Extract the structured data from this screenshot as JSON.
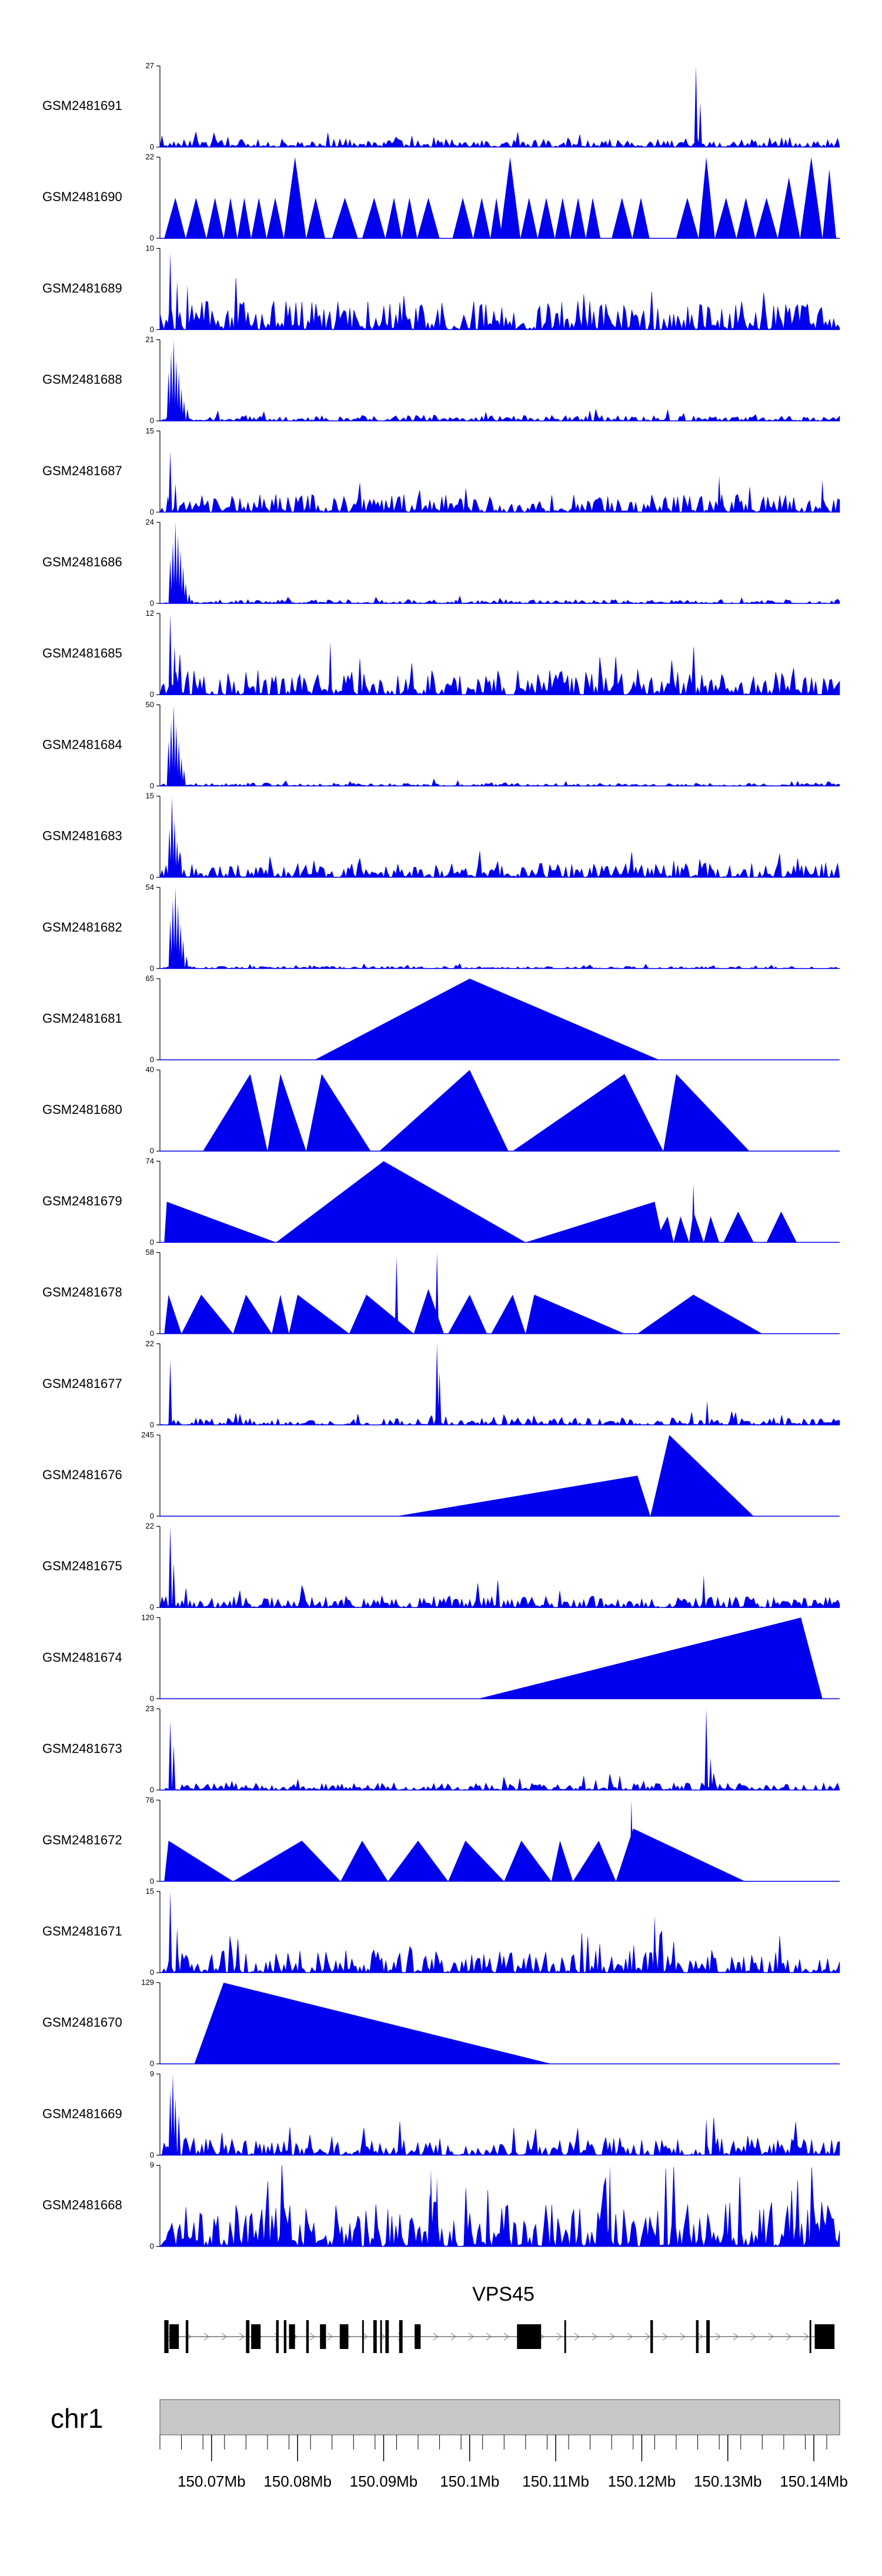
{
  "chart_data": {
    "type": "area",
    "title": "",
    "chromosome": "chr1",
    "color": "#0000ee",
    "gene": "VPS45",
    "x_unit": "Mb",
    "xlim": [
      150.064,
      150.143
    ],
    "x_ticks": [
      150.07,
      150.08,
      150.09,
      150.1,
      150.11,
      150.12,
      150.13,
      150.14
    ],
    "x_tick_labels": [
      "150.07Mb",
      "150.08Mb",
      "150.09Mb",
      "150.1Mb",
      "150.11Mb",
      "150.12Mb",
      "150.13Mb",
      "150.14Mb"
    ],
    "gene_exons": [
      [
        150.0645,
        150.065
      ],
      [
        150.0651,
        150.0662
      ],
      [
        150.067,
        150.0673
      ],
      [
        150.074,
        150.0744
      ],
      [
        150.0746,
        150.0757
      ],
      [
        150.0775,
        150.0778
      ],
      [
        150.0784,
        150.0787
      ],
      [
        150.079,
        150.0797
      ],
      [
        150.081,
        150.0813
      ],
      [
        150.0826,
        150.0833
      ],
      [
        150.0849,
        150.0859
      ],
      [
        150.0875,
        150.0877
      ],
      [
        150.0888,
        150.0892
      ],
      [
        150.0896,
        150.0898
      ],
      [
        150.0902,
        150.0906
      ],
      [
        150.0918,
        150.0922
      ],
      [
        150.0936,
        150.0943
      ],
      [
        150.1055,
        150.1083
      ],
      [
        150.111,
        150.1112
      ],
      [
        150.121,
        150.1213
      ],
      [
        150.1263,
        150.1266
      ],
      [
        150.1275,
        150.1279
      ],
      [
        150.1395,
        150.1397
      ],
      [
        150.1401,
        150.1424
      ]
    ],
    "series": [
      {
        "name": "GSM2481691",
        "ymax": 27,
        "style": "dense",
        "seed": 11,
        "base": 0.1,
        "spikes": [
          [
            150.1263,
            1.0
          ],
          [
            150.1268,
            0.55
          ]
        ]
      },
      {
        "name": "GSM2481690",
        "ymax": 22,
        "style": "tri",
        "peaks": [
          [
            150.0645,
            150.0658,
            150.067,
            0.5
          ],
          [
            150.067,
            150.0682,
            150.0694,
            0.5
          ],
          [
            150.0694,
            150.0704,
            150.0714,
            0.5
          ],
          [
            150.0714,
            150.0722,
            150.073,
            0.5
          ],
          [
            150.073,
            150.0738,
            150.0746,
            0.5
          ],
          [
            150.0746,
            150.0755,
            150.0764,
            0.5
          ],
          [
            150.0764,
            150.0774,
            150.0784,
            0.5
          ],
          [
            150.0784,
            150.0797,
            150.081,
            1.0
          ],
          [
            150.081,
            150.0821,
            150.0832,
            0.5
          ],
          [
            150.084,
            150.0855,
            150.087,
            0.5
          ],
          [
            150.0875,
            150.0889,
            150.0902,
            0.5
          ],
          [
            150.0902,
            150.0912,
            150.0921,
            0.5
          ],
          [
            150.0921,
            150.093,
            150.0939,
            0.5
          ],
          [
            150.0939,
            150.0952,
            150.0965,
            0.5
          ],
          [
            150.098,
            150.0992,
            150.1004,
            0.5
          ],
          [
            150.1004,
            150.1014,
            150.1024,
            0.5
          ],
          [
            150.1024,
            150.1031,
            150.1038,
            0.5
          ],
          [
            150.1035,
            150.1047,
            150.1059,
            1.0
          ],
          [
            150.1059,
            150.1069,
            150.1079,
            0.5
          ],
          [
            150.1079,
            150.1089,
            150.1099,
            0.5
          ],
          [
            150.1099,
            150.1108,
            150.1117,
            0.5
          ],
          [
            150.1117,
            150.1126,
            150.1135,
            0.5
          ],
          [
            150.1135,
            150.1143,
            150.1152,
            0.5
          ],
          [
            150.1165,
            150.1177,
            150.1189,
            0.5
          ],
          [
            150.1189,
            150.1199,
            150.1209,
            0.5
          ],
          [
            150.124,
            150.1253,
            150.1266,
            0.5
          ],
          [
            150.1266,
            150.1275,
            150.1285,
            1.0
          ],
          [
            150.1285,
            150.1298,
            150.131,
            0.5
          ],
          [
            150.131,
            150.1321,
            150.1332,
            0.5
          ],
          [
            150.1332,
            150.1345,
            150.1358,
            0.5
          ],
          [
            150.1358,
            150.1371,
            150.1384,
            0.75
          ],
          [
            150.1384,
            150.1397,
            150.141,
            1.0
          ],
          [
            150.141,
            150.1418,
            150.1426,
            0.85
          ]
        ]
      },
      {
        "name": "GSM2481689",
        "ymax": 10,
        "style": "dense",
        "seed": 23,
        "base": 0.35,
        "spikes": [
          [
            150.0652,
            0.95
          ],
          [
            150.066,
            0.6
          ],
          [
            150.0672,
            0.55
          ]
        ]
      },
      {
        "name": "GSM2481688",
        "ymax": 21,
        "style": "dense",
        "seed": 31,
        "base": 0.07,
        "spikes": [
          [
            150.065,
            0.6
          ],
          [
            150.0653,
            0.85
          ],
          [
            150.0656,
            1.0
          ],
          [
            150.0659,
            0.75
          ],
          [
            150.0662,
            0.6
          ],
          [
            150.0665,
            0.4
          ],
          [
            150.0668,
            0.25
          ],
          [
            150.0672,
            0.15
          ]
        ]
      },
      {
        "name": "GSM2481687",
        "ymax": 15,
        "style": "dense",
        "seed": 47,
        "base": 0.22,
        "spikes": [
          [
            150.0652,
            0.75
          ],
          [
            150.0658,
            0.35
          ],
          [
            150.129,
            0.45
          ],
          [
            150.141,
            0.4
          ]
        ]
      },
      {
        "name": "GSM2481686",
        "ymax": 24,
        "style": "dense",
        "seed": 53,
        "base": 0.05,
        "spikes": [
          [
            150.0652,
            0.55
          ],
          [
            150.0655,
            0.75
          ],
          [
            150.0658,
            1.0
          ],
          [
            150.0661,
            0.85
          ],
          [
            150.0664,
            0.65
          ],
          [
            150.0667,
            0.45
          ],
          [
            150.067,
            0.25
          ],
          [
            150.0674,
            0.12
          ]
        ]
      },
      {
        "name": "GSM2481685",
        "ymax": 12,
        "style": "dense",
        "seed": 67,
        "base": 0.3,
        "spikes": [
          [
            150.0652,
            1.0
          ],
          [
            150.0657,
            0.6
          ],
          [
            150.0838,
            0.65
          ]
        ]
      },
      {
        "name": "GSM2481684",
        "ymax": 50,
        "style": "dense",
        "seed": 71,
        "base": 0.04,
        "spikes": [
          [
            150.065,
            0.55
          ],
          [
            150.0653,
            0.8
          ],
          [
            150.0656,
            1.0
          ],
          [
            150.0659,
            0.75
          ],
          [
            150.0662,
            0.55
          ],
          [
            150.0665,
            0.35
          ],
          [
            150.0668,
            0.2
          ]
        ]
      },
      {
        "name": "GSM2481683",
        "ymax": 15,
        "style": "dense",
        "seed": 83,
        "base": 0.18,
        "spikes": [
          [
            150.0651,
            0.6
          ],
          [
            150.0654,
            1.0
          ],
          [
            150.0657,
            0.7
          ],
          [
            150.066,
            0.45
          ],
          [
            150.0664,
            0.3
          ]
        ]
      },
      {
        "name": "GSM2481682",
        "ymax": 54,
        "style": "dense",
        "seed": 97,
        "base": 0.03,
        "spikes": [
          [
            150.0652,
            0.6
          ],
          [
            150.0655,
            0.85
          ],
          [
            150.0658,
            1.0
          ],
          [
            150.0661,
            0.8
          ],
          [
            150.0664,
            0.55
          ],
          [
            150.0667,
            0.35
          ],
          [
            150.0671,
            0.15
          ]
        ]
      },
      {
        "name": "GSM2481681",
        "ymax": 65,
        "style": "tri",
        "peaks": [
          [
            150.082,
            150.1,
            150.122,
            1.0
          ]
        ],
        "spikes": [
          [
            150.1,
            0.7
          ]
        ]
      },
      {
        "name": "GSM2481680",
        "ymax": 40,
        "style": "tri",
        "peaks": [
          [
            150.069,
            150.0745,
            150.0765,
            0.95
          ],
          [
            150.0765,
            150.078,
            150.081,
            0.95
          ],
          [
            150.081,
            150.0828,
            150.0885,
            0.95
          ],
          [
            150.0895,
            150.1,
            150.1045,
            1.0
          ],
          [
            150.105,
            150.118,
            150.1225,
            0.95
          ],
          [
            150.1225,
            150.124,
            150.1325,
            0.95
          ]
        ],
        "spikes": [
          [
            150.0825,
            0.45
          ],
          [
            150.0998,
            0.75
          ]
        ]
      },
      {
        "name": "GSM2481679",
        "ymax": 74,
        "style": "tri",
        "peaks": [
          [
            150.0645,
            150.0648,
            150.0775,
            0.5
          ],
          [
            150.0775,
            150.09,
            150.1065,
            1.0
          ],
          [
            150.1065,
            150.1215,
            150.1225,
            0.5
          ],
          [
            150.1215,
            150.123,
            150.1237,
            0.32
          ],
          [
            150.1237,
            150.1245,
            150.1255,
            0.32
          ],
          [
            150.1255,
            150.126,
            150.1272,
            0.38
          ],
          [
            150.1272,
            150.128,
            150.129,
            0.32
          ],
          [
            150.1295,
            150.1312,
            150.133,
            0.38
          ],
          [
            150.1345,
            150.1362,
            150.138,
            0.38
          ]
        ],
        "spikes": [
          [
            150.126,
            0.72
          ]
        ]
      },
      {
        "name": "GSM2481678",
        "ymax": 58,
        "style": "tri",
        "peaks": [
          [
            150.0645,
            150.065,
            150.0665,
            0.48
          ],
          [
            150.0665,
            150.0688,
            150.0725,
            0.48
          ],
          [
            150.0725,
            150.074,
            150.077,
            0.48
          ],
          [
            150.077,
            150.078,
            150.079,
            0.48
          ],
          [
            150.079,
            150.08,
            150.086,
            0.48
          ],
          [
            150.086,
            150.088,
            150.0935,
            0.48
          ],
          [
            150.0935,
            150.0952,
            150.097,
            0.55
          ],
          [
            150.0975,
            150.1,
            150.102,
            0.48
          ],
          [
            150.1025,
            150.105,
            150.1065,
            0.48
          ],
          [
            150.1065,
            150.1075,
            150.118,
            0.48
          ],
          [
            150.1195,
            150.126,
            150.134,
            0.48
          ]
        ],
        "spikes": [
          [
            150.0915,
            0.95
          ],
          [
            150.0962,
            1.0
          ]
        ]
      },
      {
        "name": "GSM2481677",
        "ymax": 22,
        "style": "dense",
        "seed": 109,
        "base": 0.09,
        "spikes": [
          [
            150.0652,
            0.8
          ],
          [
            150.0962,
            1.0
          ],
          [
            150.0965,
            0.65
          ],
          [
            150.1276,
            0.3
          ]
        ]
      },
      {
        "name": "GSM2481676",
        "ymax": 245,
        "style": "tri",
        "peaks": [
          [
            150.0915,
            150.1195,
            150.121,
            0.5
          ],
          [
            150.121,
            150.1232,
            150.133,
            1.0
          ]
        ]
      },
      {
        "name": "GSM2481675",
        "ymax": 22,
        "style": "dense",
        "seed": 127,
        "base": 0.14,
        "spikes": [
          [
            150.0652,
            1.0
          ],
          [
            150.0656,
            0.55
          ],
          [
            150.1272,
            0.4
          ]
        ]
      },
      {
        "name": "GSM2481674",
        "ymax": 120,
        "style": "tri",
        "peaks": [
          [
            150.101,
            150.1385,
            150.141,
            1.0
          ]
        ]
      },
      {
        "name": "GSM2481673",
        "ymax": 23,
        "style": "dense",
        "seed": 139,
        "base": 0.09,
        "spikes": [
          [
            150.0652,
            0.85
          ],
          [
            150.0656,
            0.55
          ],
          [
            150.1275,
            1.0
          ],
          [
            150.128,
            0.4
          ]
        ]
      },
      {
        "name": "GSM2481672",
        "ymax": 76,
        "style": "tri",
        "peaks": [
          [
            150.0645,
            150.065,
            150.0725,
            0.5
          ],
          [
            150.0725,
            150.0805,
            150.085,
            0.5
          ],
          [
            150.085,
            150.0875,
            150.0905,
            0.5
          ],
          [
            150.0905,
            150.094,
            150.0975,
            0.5
          ],
          [
            150.0975,
            150.0995,
            150.104,
            0.5
          ],
          [
            150.104,
            150.106,
            150.1095,
            0.5
          ],
          [
            150.1095,
            150.1105,
            150.112,
            0.5
          ],
          [
            150.112,
            150.115,
            150.117,
            0.5
          ],
          [
            150.117,
            150.119,
            150.132,
            0.65
          ]
        ],
        "spikes": [
          [
            150.0875,
            0.45
          ],
          [
            150.0995,
            0.45
          ],
          [
            150.1188,
            1.0
          ]
        ]
      },
      {
        "name": "GSM2481671",
        "ymax": 15,
        "style": "dense",
        "seed": 151,
        "base": 0.28,
        "spikes": [
          [
            150.0652,
            1.0
          ],
          [
            150.066,
            0.55
          ],
          [
            150.1215,
            0.7
          ]
        ]
      },
      {
        "name": "GSM2481670",
        "ymax": 129,
        "style": "tri",
        "peaks": [
          [
            150.068,
            150.0714,
            150.1095,
            1.0
          ]
        ],
        "spikes": [
          [
            150.071,
            0.55
          ]
        ]
      },
      {
        "name": "GSM2481669",
        "ymax": 9,
        "style": "dense",
        "seed": 163,
        "base": 0.22,
        "spikes": [
          [
            150.0652,
            0.8
          ],
          [
            150.0655,
            1.0
          ],
          [
            150.0658,
            0.7
          ],
          [
            150.0662,
            0.5
          ],
          [
            150.1275,
            0.45
          ]
        ]
      },
      {
        "name": "GSM2481668",
        "ymax": 9,
        "style": "dense",
        "seed": 179,
        "base": 0.55,
        "spikes": [
          [
            150.0955,
            0.95
          ],
          [
            150.0962,
            0.85
          ],
          [
            150.1163,
            1.0
          ]
        ]
      }
    ]
  }
}
